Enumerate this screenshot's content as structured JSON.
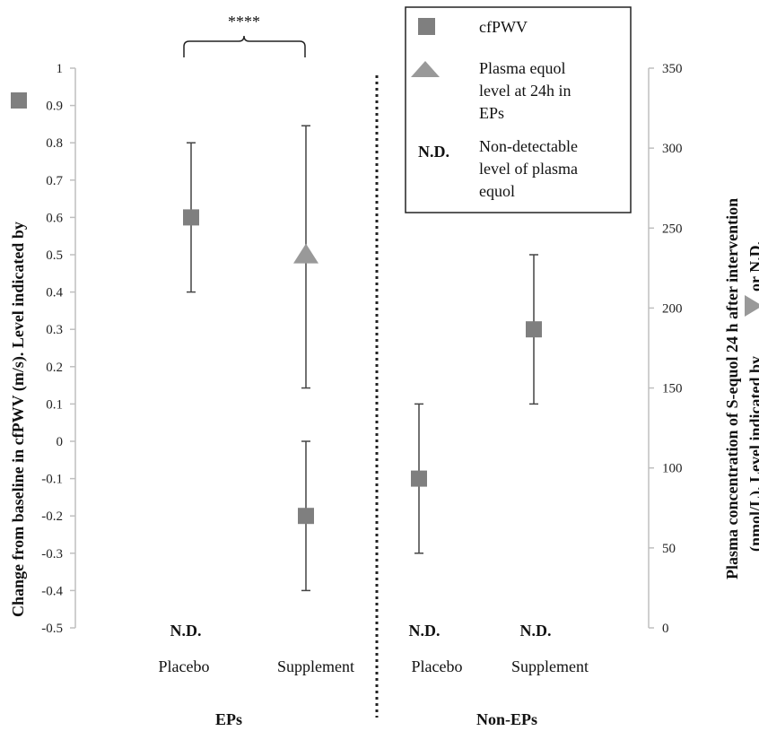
{
  "chart_data": {
    "type": "scatter",
    "left_axis": {
      "title": "Change from baseline in cfPWV (m/s). Level indicated by",
      "range": [
        -0.5,
        1
      ],
      "ticks": [
        "1",
        "0.9",
        "0.8",
        "0.7",
        "0.6",
        "0.5",
        "0.4",
        "0.3",
        "0.2",
        "0.1",
        "0",
        "-0.1",
        "-0.2",
        "-0.3",
        "-0.4",
        "-0.5"
      ]
    },
    "right_axis": {
      "title_line1": "Plasma concentration of S-equol 24 h after intervention",
      "title_line2_before": "(nmol/L). Level indicated by",
      "title_line2_after": "or N.D.",
      "range": [
        0,
        350
      ],
      "ticks": [
        "350",
        "300",
        "250",
        "200",
        "150",
        "100",
        "50",
        "0"
      ]
    },
    "groups": [
      "EPs",
      "Non-EPs"
    ],
    "categories": [
      "Placebo",
      "Supplement",
      "Placebo",
      "Supplement"
    ],
    "series": [
      {
        "name": "cfPWV",
        "marker": "square",
        "axis": "left",
        "points": [
          {
            "category": "Placebo",
            "group": "EPs",
            "value": 0.6,
            "low": 0.4,
            "high": 0.8
          },
          {
            "category": "Supplement",
            "group": "EPs",
            "value": -0.2,
            "low": -0.4,
            "high": 0.0
          },
          {
            "category": "Placebo",
            "group": "Non-EPs",
            "value": -0.1,
            "low": -0.3,
            "high": 0.1
          },
          {
            "category": "Supplement",
            "group": "Non-EPs",
            "value": 0.3,
            "low": 0.1,
            "high": 0.5
          }
        ]
      },
      {
        "name": "Plasma equol level at 24h in EPs",
        "marker": "triangle",
        "axis": "right",
        "points": [
          {
            "category": "Supplement",
            "group": "EPs",
            "value": 233,
            "low": 150,
            "high": 314
          }
        ]
      }
    ],
    "nd_labels": [
      "N.D.",
      "N.D.",
      "N.D."
    ],
    "significance": "****",
    "legend": {
      "placement": "top-right",
      "square_label": "cfPWV",
      "triangle_lines": [
        "Plasma equol",
        "level at 24h in",
        "EPs"
      ],
      "nd_key": "N.D.",
      "nd_lines": [
        "Non-detectable",
        "level of plasma",
        "equol"
      ]
    },
    "colors": {
      "marker": "#7f7f7f",
      "error_bar": "#444444",
      "axis": "#bfbfbf"
    },
    "grid": false
  }
}
